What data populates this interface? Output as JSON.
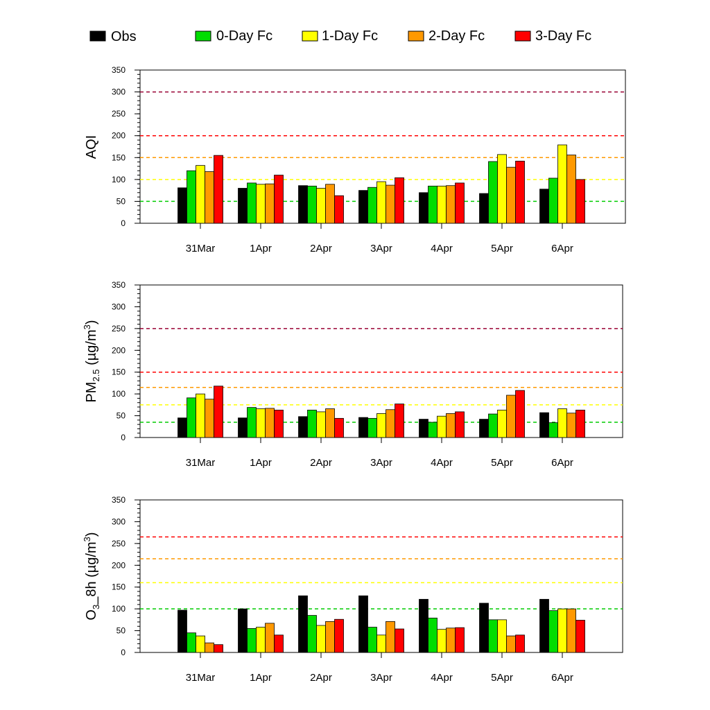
{
  "legend": [
    {
      "label": "Obs",
      "color": "#000000"
    },
    {
      "label": "0-Day Fc",
      "color": "#00dd00"
    },
    {
      "label": "1-Day Fc",
      "color": "#ffff00"
    },
    {
      "label": "2-Day Fc",
      "color": "#ff9900"
    },
    {
      "label": "3-Day Fc",
      "color": "#ff0000"
    }
  ],
  "chart_data": [
    {
      "type": "bar",
      "ylabel": "AQI",
      "ylim": [
        0,
        350
      ],
      "yticks": [
        0,
        50,
        100,
        150,
        200,
        250,
        300,
        350
      ],
      "categories": [
        "31Mar",
        "1Apr",
        "2Apr",
        "3Apr",
        "4Apr",
        "5Apr",
        "6Apr"
      ],
      "series": [
        {
          "name": "Obs",
          "color": "#000000",
          "values": [
            81,
            80,
            86,
            75,
            70,
            68,
            78
          ]
        },
        {
          "name": "0-Day Fc",
          "color": "#00dd00",
          "values": [
            120,
            92,
            85,
            82,
            85,
            141,
            103
          ]
        },
        {
          "name": "1-Day Fc",
          "color": "#ffff00",
          "values": [
            132,
            89,
            80,
            95,
            85,
            157,
            179
          ]
        },
        {
          "name": "2-Day Fc",
          "color": "#ff9900",
          "values": [
            118,
            90,
            89,
            87,
            86,
            128,
            156
          ]
        },
        {
          "name": "3-Day Fc",
          "color": "#ff0000",
          "values": [
            155,
            110,
            63,
            104,
            92,
            142,
            100
          ]
        }
      ],
      "threshold_lines": [
        {
          "value": 50,
          "color": "#00cc00"
        },
        {
          "value": 100,
          "color": "#ffff00"
        },
        {
          "value": 150,
          "color": "#ff9900"
        },
        {
          "value": 200,
          "color": "#ff0000"
        },
        {
          "value": 300,
          "color": "#990033"
        }
      ],
      "grid": false
    },
    {
      "type": "bar",
      "ylabel": "PM2.5 (µg/m3)",
      "ylabel_parts": {
        "pm": "PM",
        "pm_sub": "2.5",
        "unit": " (µg/m",
        "unit_sup": "3",
        "close": ")"
      },
      "ylim": [
        0,
        350
      ],
      "yticks": [
        0,
        50,
        100,
        150,
        200,
        250,
        300,
        350
      ],
      "categories": [
        "31Mar",
        "1Apr",
        "2Apr",
        "3Apr",
        "4Apr",
        "5Apr",
        "6Apr"
      ],
      "series": [
        {
          "name": "Obs",
          "color": "#000000",
          "values": [
            45,
            45,
            48,
            46,
            42,
            42,
            57
          ]
        },
        {
          "name": "0-Day Fc",
          "color": "#00dd00",
          "values": [
            91,
            69,
            63,
            44,
            35,
            54,
            34
          ]
        },
        {
          "name": "1-Day Fc",
          "color": "#ffff00",
          "values": [
            100,
            66,
            59,
            55,
            49,
            63,
            66
          ]
        },
        {
          "name": "2-Day Fc",
          "color": "#ff9900",
          "values": [
            88,
            67,
            66,
            64,
            55,
            97,
            56
          ]
        },
        {
          "name": "3-Day Fc",
          "color": "#ff0000",
          "values": [
            118,
            63,
            44,
            77,
            59,
            108,
            63
          ]
        }
      ],
      "threshold_lines": [
        {
          "value": 35,
          "color": "#00cc00"
        },
        {
          "value": 75,
          "color": "#ffff00"
        },
        {
          "value": 115,
          "color": "#ff9900"
        },
        {
          "value": 150,
          "color": "#ff0000"
        },
        {
          "value": 250,
          "color": "#990033"
        }
      ],
      "grid": false
    },
    {
      "type": "bar",
      "ylabel": "O3_8h (µg/m3)",
      "ylabel_parts": {
        "o": "O",
        "o_sub": "3",
        "rest": "_8h (µg/m",
        "unit_sup": "3",
        "close": ")"
      },
      "ylim": [
        0,
        350
      ],
      "yticks": [
        0,
        50,
        100,
        150,
        200,
        250,
        300,
        350
      ],
      "categories": [
        "31Mar",
        "1Apr",
        "2Apr",
        "3Apr",
        "4Apr",
        "5Apr",
        "6Apr"
      ],
      "series": [
        {
          "name": "Obs",
          "color": "#000000",
          "values": [
            97,
            100,
            130,
            130,
            122,
            113,
            122
          ]
        },
        {
          "name": "0-Day Fc",
          "color": "#00dd00",
          "values": [
            45,
            55,
            85,
            58,
            79,
            75,
            96
          ]
        },
        {
          "name": "1-Day Fc",
          "color": "#ffff00",
          "values": [
            38,
            58,
            62,
            40,
            53,
            75,
            100
          ]
        },
        {
          "name": "2-Day Fc",
          "color": "#ff9900",
          "values": [
            22,
            67,
            71,
            71,
            56,
            38,
            100
          ]
        },
        {
          "name": "3-Day Fc",
          "color": "#ff0000",
          "values": [
            18,
            40,
            76,
            54,
            57,
            40,
            74
          ]
        }
      ],
      "threshold_lines": [
        {
          "value": 100,
          "color": "#00cc00"
        },
        {
          "value": 160,
          "color": "#ffff00"
        },
        {
          "value": 215,
          "color": "#ff9900"
        },
        {
          "value": 265,
          "color": "#ff0000"
        }
      ],
      "grid": false
    }
  ]
}
